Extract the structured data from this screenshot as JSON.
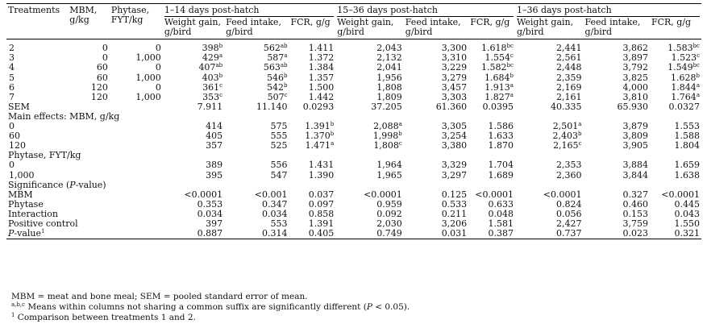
{
  "header": {
    "treatments": "Treatments",
    "mbm": [
      "MBM,",
      "g/kg"
    ],
    "phytase": [
      "Phytase,",
      "FYT/kg"
    ],
    "groups": [
      "1–14 days post-hatch",
      "15–36 days post-hatch",
      "1–36 days post-hatch"
    ],
    "weight_gain": [
      "Weight gain,",
      "g/bird"
    ],
    "feed_intake": [
      "Feed intake,",
      "g/bird"
    ],
    "fcr": "FCR, g/g"
  },
  "treatment_rows": [
    {
      "t": "2",
      "mbm": "0",
      "phy": "0",
      "cells": [
        [
          "398",
          "b"
        ],
        [
          "562",
          "ab"
        ],
        [
          "1.411",
          ""
        ],
        [
          "2,043",
          ""
        ],
        [
          "3,300",
          ""
        ],
        [
          "1.618",
          "bc"
        ],
        [
          "2,441",
          ""
        ],
        [
          "3,862",
          ""
        ],
        [
          "1.583",
          "bc"
        ]
      ]
    },
    {
      "t": "3",
      "mbm": "0",
      "phy": "1,000",
      "cells": [
        [
          "429",
          "a"
        ],
        [
          "587",
          "a"
        ],
        [
          "1.372",
          ""
        ],
        [
          "2,132",
          ""
        ],
        [
          "3,310",
          ""
        ],
        [
          "1.554",
          "c"
        ],
        [
          "2,561",
          ""
        ],
        [
          "3,897",
          ""
        ],
        [
          "1.523",
          "c"
        ]
      ]
    },
    {
      "t": "4",
      "mbm": "60",
      "phy": "0",
      "cells": [
        [
          "407",
          "ab"
        ],
        [
          "563",
          "ab"
        ],
        [
          "1.384",
          ""
        ],
        [
          "2,041",
          ""
        ],
        [
          "3,229",
          ""
        ],
        [
          "1.582",
          "bc"
        ],
        [
          "2,448",
          ""
        ],
        [
          "3,792",
          ""
        ],
        [
          "1.549",
          "bc"
        ]
      ]
    },
    {
      "t": "5",
      "mbm": "60",
      "phy": "1,000",
      "cells": [
        [
          "403",
          "b"
        ],
        [
          "546",
          "b"
        ],
        [
          "1.357",
          ""
        ],
        [
          "1,956",
          ""
        ],
        [
          "3,279",
          ""
        ],
        [
          "1.684",
          "b"
        ],
        [
          "2,359",
          ""
        ],
        [
          "3,825",
          ""
        ],
        [
          "1.628",
          "b"
        ]
      ]
    },
    {
      "t": "6",
      "mbm": "120",
      "phy": "0",
      "cells": [
        [
          "361",
          "c"
        ],
        [
          "542",
          "b"
        ],
        [
          "1.500",
          ""
        ],
        [
          "1,808",
          ""
        ],
        [
          "3,457",
          ""
        ],
        [
          "1.913",
          "a"
        ],
        [
          "2,169",
          ""
        ],
        [
          "4,000",
          ""
        ],
        [
          "1.844",
          "a"
        ]
      ]
    },
    {
      "t": "7",
      "mbm": "120",
      "phy": "1,000",
      "cells": [
        [
          "353",
          "c"
        ],
        [
          "507",
          "c"
        ],
        [
          "1.442",
          ""
        ],
        [
          "1,809",
          ""
        ],
        [
          "3,303",
          ""
        ],
        [
          "1.827",
          "a"
        ],
        [
          "2,161",
          ""
        ],
        [
          "3,810",
          ""
        ],
        [
          "1.764",
          "a"
        ]
      ]
    }
  ],
  "sem": {
    "label": "SEM",
    "values": [
      "7.911",
      "11.140",
      "0.0293",
      "37.205",
      "61.360",
      "0.0395",
      "40.335",
      "65.930",
      "0.0327"
    ]
  },
  "main_mbm": {
    "label": "Main effects: MBM, g/kg",
    "rows": [
      {
        "level": "0",
        "cells": [
          [
            "414",
            ""
          ],
          [
            "575",
            ""
          ],
          [
            "1.391",
            "b"
          ],
          [
            "2,088",
            "a"
          ],
          [
            "3,305",
            ""
          ],
          [
            "1.586",
            ""
          ],
          [
            "2,501",
            "a"
          ],
          [
            "3,879",
            ""
          ],
          [
            "1.553",
            ""
          ]
        ]
      },
      {
        "level": "60",
        "cells": [
          [
            "405",
            ""
          ],
          [
            "555",
            ""
          ],
          [
            "1.370",
            "b"
          ],
          [
            "1,998",
            "b"
          ],
          [
            "3,254",
            ""
          ],
          [
            "1.633",
            ""
          ],
          [
            "2,403",
            "b"
          ],
          [
            "3,809",
            ""
          ],
          [
            "1.588",
            ""
          ]
        ]
      },
      {
        "level": "120",
        "cells": [
          [
            "357",
            ""
          ],
          [
            "525",
            ""
          ],
          [
            "1.471",
            "a"
          ],
          [
            "1,808",
            "c"
          ],
          [
            "3,380",
            ""
          ],
          [
            "1.870",
            ""
          ],
          [
            "2,165",
            "c"
          ],
          [
            "3,905",
            ""
          ],
          [
            "1.804",
            ""
          ]
        ]
      }
    ]
  },
  "main_phy": {
    "label": "Phytase, FYT/kg",
    "rows": [
      {
        "level": "0",
        "cells": [
          [
            "389",
            ""
          ],
          [
            "556",
            ""
          ],
          [
            "1.431",
            ""
          ],
          [
            "1,964",
            ""
          ],
          [
            "3,329",
            ""
          ],
          [
            "1.704",
            ""
          ],
          [
            "2,353",
            ""
          ],
          [
            "3,884",
            ""
          ],
          [
            "1.659",
            ""
          ]
        ]
      },
      {
        "level": "1,000",
        "cells": [
          [
            "395",
            ""
          ],
          [
            "547",
            ""
          ],
          [
            "1.390",
            ""
          ],
          [
            "1,965",
            ""
          ],
          [
            "3,297",
            ""
          ],
          [
            "1.689",
            ""
          ],
          [
            "2,360",
            ""
          ],
          [
            "3,844",
            ""
          ],
          [
            "1.638",
            ""
          ]
        ]
      }
    ]
  },
  "significance": {
    "label": "Significance (",
    "label_p": "P",
    "label_end": "-value)",
    "rows": [
      {
        "name": "MBM",
        "values": [
          "<0.0001",
          "<0.001",
          "0.037",
          "<0.0001",
          "0.125",
          "<0.0001",
          "<0.0001",
          "0.327",
          "<0.0001"
        ]
      },
      {
        "name": "Phytase",
        "values": [
          "0.353",
          "0.347",
          "0.097",
          "0.959",
          "0.533",
          "0.633",
          "0.824",
          "0.460",
          "0.445"
        ]
      },
      {
        "name": "Interaction",
        "values": [
          "0.034",
          "0.034",
          "0.858",
          "0.092",
          "0.211",
          "0.048",
          "0.056",
          "0.153",
          "0.043"
        ]
      }
    ]
  },
  "positive_control": {
    "label": "Positive control",
    "values": [
      "397",
      "553",
      "1.391",
      "2,030",
      "3,206",
      "1.581",
      "2,427",
      "3,759",
      "1.550"
    ]
  },
  "p_value_row": {
    "label": "P",
    "label_end": "-value",
    "sup": "1",
    "values": [
      "0.887",
      "0.314",
      "0.405",
      "0.749",
      "0.031",
      "0.387",
      "0.737",
      "0.023",
      "0.321"
    ]
  },
  "footnotes": {
    "f1": "MBM = meat and bone meal; SEM = pooled standard error of mean.",
    "f2_sup": "a,b,c",
    "f2": " Means within columns not sharing a common suffix are significantly different (",
    "f2_p": "P",
    "f2_end": " < 0.05).",
    "f3_sup": "1",
    "f3": " Comparison between treatments 1 and 2."
  }
}
